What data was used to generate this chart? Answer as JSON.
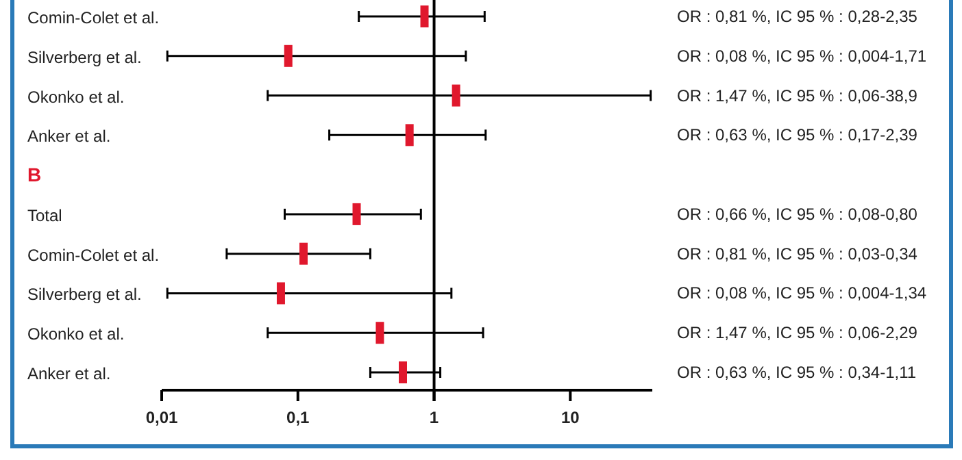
{
  "chart_data": {
    "type": "scatter",
    "orientation": "horizontal",
    "log": "x",
    "categories": [
      "Comin-Colet et al.",
      "Silverberg et al.",
      "Okonko et al.",
      "Anker et al.",
      null,
      "Total",
      "Comin-Colet et al.",
      "Silverberg et al.",
      "Okonko et al.",
      "Anker et al."
    ],
    "values": [
      0.85,
      0.085,
      1.45,
      0.66,
      null,
      0.27,
      0.11,
      0.075,
      0.4,
      0.59
    ],
    "errors": [
      [
        0.28,
        2.35
      ],
      [
        0.011,
        1.71
      ],
      [
        0.06,
        38.9
      ],
      [
        0.17,
        2.39
      ],
      null,
      [
        0.08,
        0.8
      ],
      [
        0.03,
        0.34
      ],
      [
        0.011,
        1.34
      ],
      [
        0.06,
        2.29
      ],
      [
        0.34,
        1.11
      ]
    ],
    "color": "#e0182d",
    "marker": "square",
    "xlim": [
      0.01,
      40
    ],
    "xticks": [
      {
        "value": 0.01,
        "label": "0,01"
      },
      {
        "value": 0.1,
        "label": "0,1"
      },
      1,
      10
    ],
    "ref_lines": [
      {
        "axis": "x",
        "value": 1,
        "color": "#000000"
      }
    ],
    "annotations": [
      "OR : 0,81 %, IC 95 % : 0,28-2,35",
      "OR : 0,08 %, IC 95 % : 0,004-1,71",
      "OR : 1,47 %, IC 95 % : 0,06-38,9",
      "OR : 0,63 %, IC 95 % : 0,17-2,39",
      "B",
      "OR : 0,66 %, IC 95 % : 0,08-0,80",
      "OR : 0,81 %, IC 95 % : 0,03-0,34",
      "OR : 0,08 %, IC 95 % : 0,004-1,34",
      "OR : 1,47 %, IC 95 % : 0,06-2,29",
      "OR : 0,63 %, IC 95 % : 0,34-1,11"
    ],
    "grid": false
  }
}
